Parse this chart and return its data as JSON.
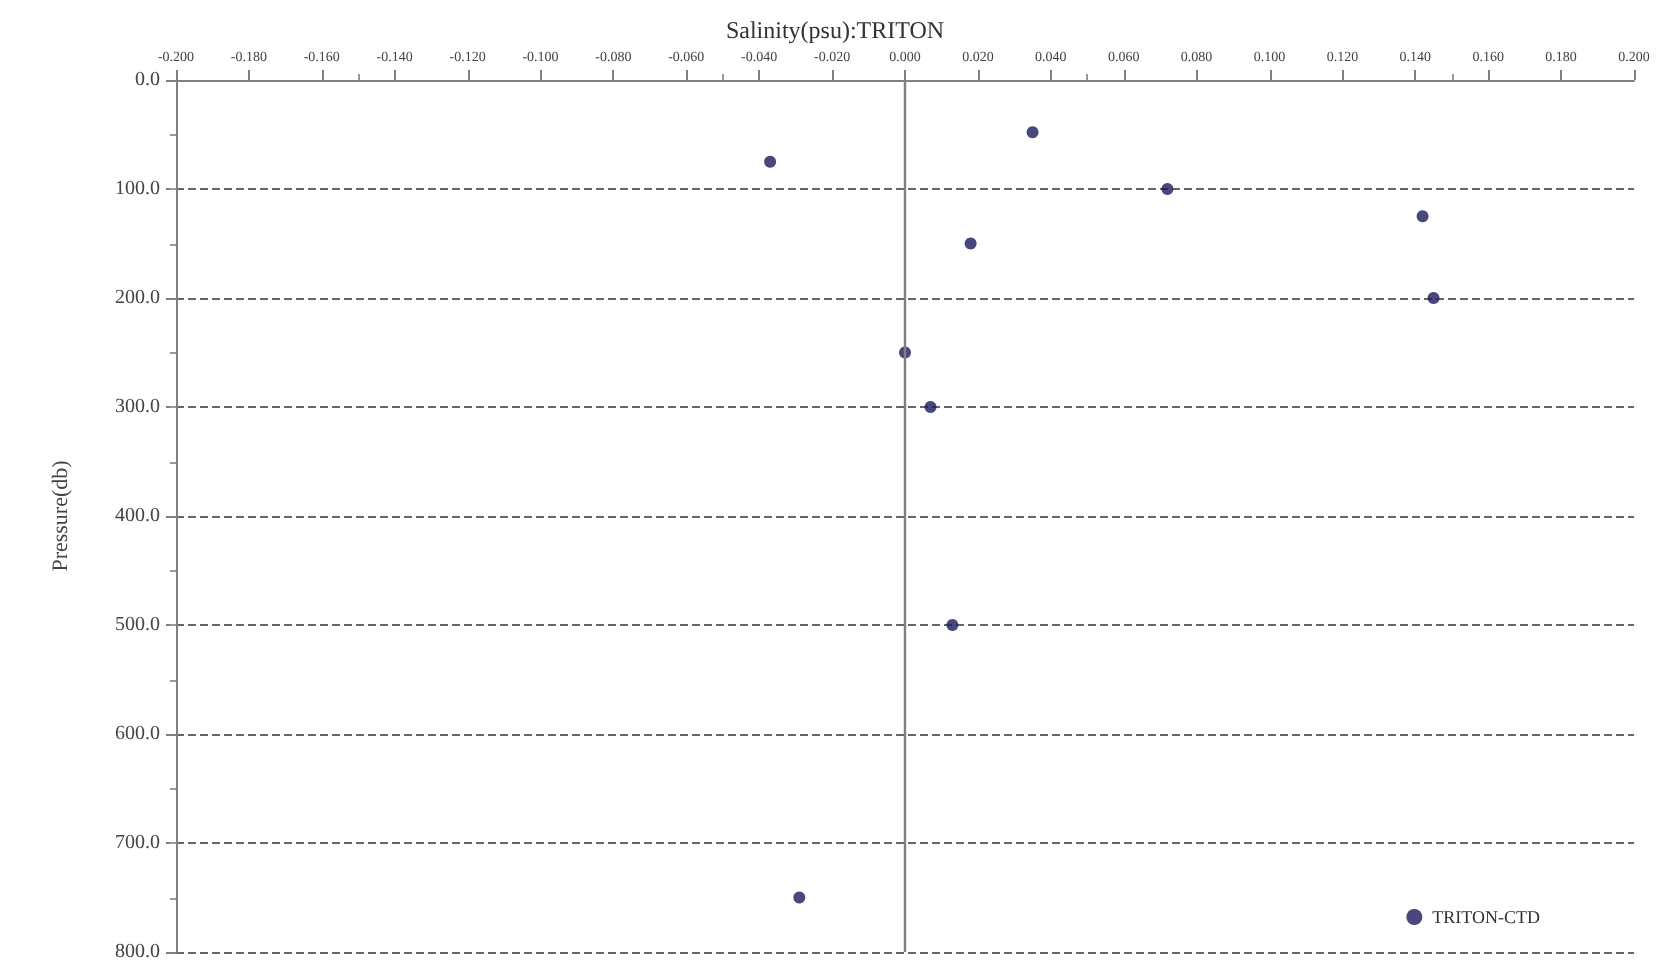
{
  "chart_data": {
    "type": "scatter",
    "title": "Salinity(psu):TRITON",
    "ylabel": "Pressure(db)",
    "x": [
      -0.037,
      0.035,
      0.072,
      0.142,
      0.018,
      0.145,
      0.0,
      0.007,
      0.013,
      -0.029
    ],
    "series": [
      {
        "name": "TRITON-CTD",
        "color": "#1a1a5e",
        "values": [
          75,
          48,
          100,
          125,
          150,
          200,
          250,
          300,
          500,
          750
        ]
      }
    ],
    "xlim": [
      -0.2,
      0.2
    ],
    "xticks": [
      {
        "value": -0.2,
        "label": "-0.200"
      },
      {
        "value": -0.18,
        "label": "-0.180"
      },
      {
        "value": -0.16,
        "label": "-0.160"
      },
      {
        "value": -0.14,
        "label": "-0.140"
      },
      {
        "value": -0.12,
        "label": "-0.120"
      },
      {
        "value": -0.1,
        "label": "-0.100"
      },
      {
        "value": -0.08,
        "label": "-0.080"
      },
      {
        "value": -0.06,
        "label": "-0.060"
      },
      {
        "value": -0.04,
        "label": "-0.040"
      },
      {
        "value": -0.02,
        "label": "-0.020"
      },
      {
        "value": 0,
        "label": "0.000"
      },
      {
        "value": 0.02,
        "label": "0.020"
      },
      {
        "value": 0.04,
        "label": "0.040"
      },
      {
        "value": 0.06,
        "label": "0.060"
      },
      {
        "value": 0.08,
        "label": "0.080"
      },
      {
        "value": 0.1,
        "label": "0.100"
      },
      {
        "value": 0.12,
        "label": "0.120"
      },
      {
        "value": 0.14,
        "label": "0.140"
      },
      {
        "value": 0.16,
        "label": "0.160"
      },
      {
        "value": 0.18,
        "label": "0.180"
      },
      {
        "value": 0.2,
        "label": "0.200"
      }
    ],
    "ylim": [
      800,
      0
    ],
    "yticks": [
      {
        "value": 0,
        "label": "0.0"
      },
      {
        "value": 100,
        "label": "100.0"
      },
      {
        "value": 200,
        "label": "200.0"
      },
      {
        "value": 300,
        "label": "300.0"
      },
      {
        "value": 400,
        "label": "400.0"
      },
      {
        "value": 500,
        "label": "500.0"
      },
      {
        "value": 600,
        "label": "600.0"
      },
      {
        "value": 700,
        "label": "700.0"
      },
      {
        "value": 800,
        "label": "800.0"
      }
    ],
    "ref_lines": [
      {
        "axis": "x",
        "value": 0,
        "color": "#808080"
      }
    ],
    "grid": "y",
    "legend": "bottom right",
    "marker": "circle"
  }
}
